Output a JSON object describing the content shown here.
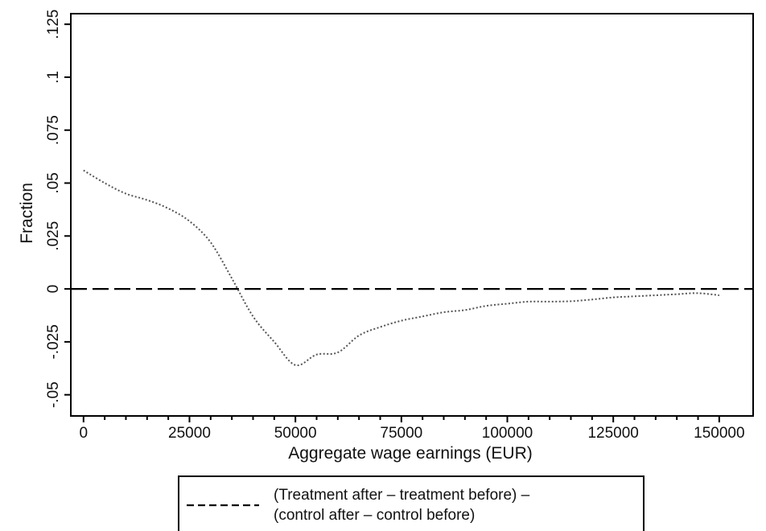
{
  "chart_data": {
    "type": "line",
    "title": "",
    "xlabel": "Aggregate wage earnings (EUR)",
    "ylabel": "Fraction",
    "xlim": [
      -3000,
      158000
    ],
    "ylim": [
      -0.06,
      0.13
    ],
    "x_ticks": [
      0,
      25000,
      50000,
      75000,
      100000,
      125000,
      150000
    ],
    "x_tick_labels": [
      "0",
      "25000",
      "50000",
      "75000",
      "100000",
      "125000",
      "150000"
    ],
    "y_ticks": [
      -0.05,
      -0.025,
      0,
      0.025,
      0.05,
      0.075,
      0.1,
      0.125
    ],
    "y_tick_labels": [
      "-.05",
      "-.025",
      "0",
      ".025",
      ".05",
      ".075",
      ".1",
      ".125"
    ],
    "grid": false,
    "reference_line": {
      "y": 0,
      "style": "long-dash"
    },
    "series": [
      {
        "name": "(Treatment after – treatment before) – (control after – control before)",
        "style": "dotted",
        "color": "#555555",
        "x": [
          0,
          5000,
          10000,
          15000,
          20000,
          25000,
          30000,
          35000,
          40000,
          45000,
          50000,
          55000,
          60000,
          65000,
          70000,
          75000,
          80000,
          85000,
          90000,
          95000,
          100000,
          105000,
          110000,
          115000,
          120000,
          125000,
          130000,
          135000,
          140000,
          145000,
          150000
        ],
        "values": [
          0.056,
          0.05,
          0.045,
          0.042,
          0.038,
          0.032,
          0.022,
          0.005,
          -0.013,
          -0.025,
          -0.036,
          -0.031,
          -0.03,
          -0.022,
          -0.018,
          -0.015,
          -0.013,
          -0.011,
          -0.01,
          -0.008,
          -0.007,
          -0.006,
          -0.006,
          -0.0058,
          -0.005,
          -0.004,
          -0.0035,
          -0.003,
          -0.0025,
          -0.002,
          -0.003
        ]
      }
    ],
    "legend": {
      "position": "bottom",
      "line1": "(Treatment after – treatment before) –",
      "line2": "(control after – control before)"
    }
  }
}
